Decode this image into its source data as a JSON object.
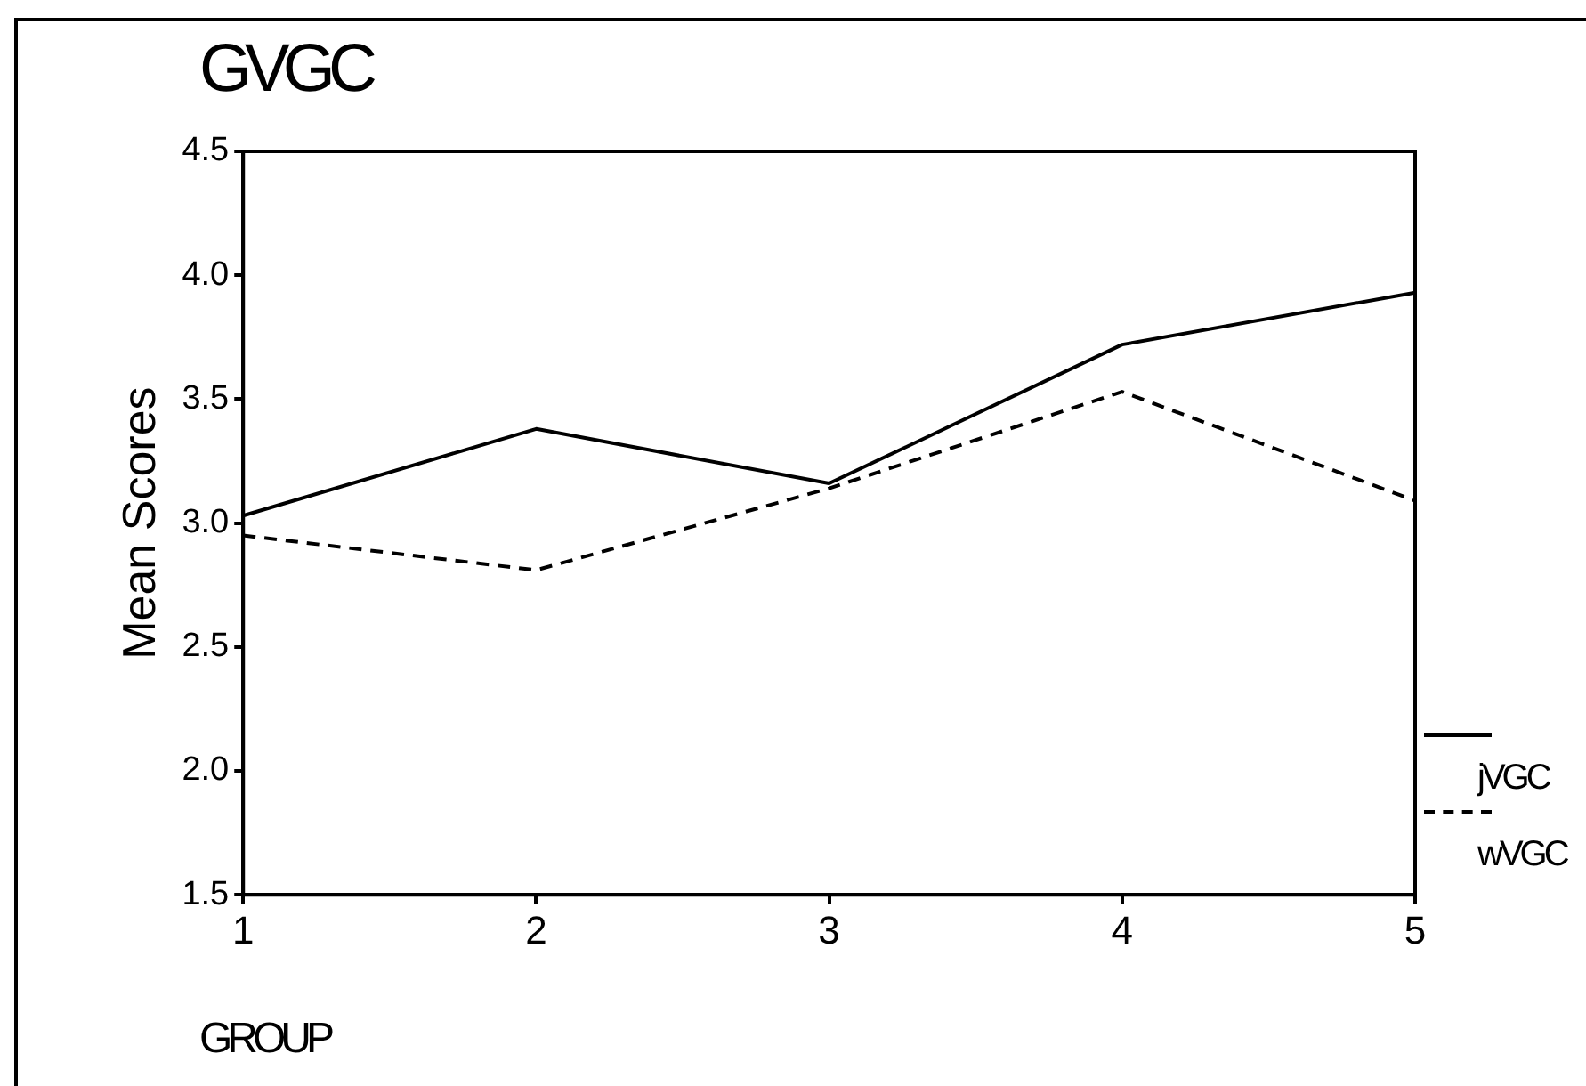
{
  "chart_data": {
    "type": "line",
    "title": "GVGC",
    "xlabel": "GROUP",
    "ylabel": "Mean Scores",
    "categories": [
      "1",
      "2",
      "3",
      "4",
      "5"
    ],
    "ylim": [
      1.5,
      4.5
    ],
    "yticks": [
      {
        "value": 1.5,
        "label": "1.5"
      },
      {
        "value": 2,
        "label": "2.0"
      },
      {
        "value": 2.5,
        "label": "2.5"
      },
      {
        "value": 3,
        "label": "3.0"
      },
      {
        "value": 3.5,
        "label": "3.5"
      },
      {
        "value": 4,
        "label": "4.0"
      },
      {
        "value": 4.5,
        "label": "4.5"
      }
    ],
    "series": [
      {
        "name": "jVGC",
        "color": "#000000",
        "line_style": "solid",
        "values": [
          3.03,
          3.38,
          3.16,
          3.72,
          3.93
        ]
      },
      {
        "name": "wVGC",
        "color": "#000000",
        "line_style": "dashed",
        "values": [
          2.95,
          2.81,
          3.14,
          3.53,
          3.09
        ]
      }
    ],
    "grid": false,
    "legend": "right",
    "marker": "none"
  }
}
